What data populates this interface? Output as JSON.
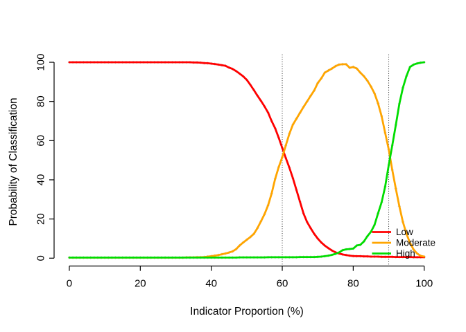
{
  "chart_data": {
    "type": "line",
    "title": "",
    "xlabel": "Indicator Proportion (%)",
    "ylabel": "Probability of Classification",
    "xlim": [
      0,
      100
    ],
    "ylim": [
      0,
      100
    ],
    "x_ticks": [
      "0",
      "20",
      "40",
      "60",
      "80",
      "100"
    ],
    "y_ticks": [
      "0",
      "20",
      "40",
      "60",
      "80",
      "100"
    ],
    "grid": "off",
    "legend_position": "bottom-right",
    "marker": {
      "shape": "diamond-point",
      "color": "#cbcbcb"
    },
    "vlines": [
      {
        "x": 60,
        "style": "dotted",
        "color": "#222222"
      },
      {
        "x": 90,
        "style": "dotted",
        "color": "#222222"
      }
    ],
    "x_step": 1,
    "series": [
      {
        "name": "Low",
        "color": "#ff0000",
        "values": [
          100,
          100,
          100,
          100,
          100,
          100,
          100,
          100,
          100,
          100,
          100,
          100,
          100,
          100,
          100,
          100,
          100,
          100,
          100,
          100,
          100,
          100,
          100,
          100,
          100,
          100,
          100,
          100,
          100,
          100,
          100,
          100,
          100,
          100,
          100,
          99.9,
          99.9,
          99.8,
          99.6,
          99.5,
          99.3,
          99.1,
          98.8,
          98.5,
          98.2,
          97.3,
          96.6,
          95.5,
          94.2,
          92.8,
          91.0,
          88.5,
          85.8,
          83.0,
          80.3,
          77.5,
          74.3,
          70.0,
          66.3,
          61.5,
          56.3,
          51.2,
          46.2,
          40.8,
          34.8,
          28.8,
          22.8,
          18.5,
          15.3,
          12.4,
          10.0,
          8.0,
          6.4,
          5.1,
          3.9,
          3.0,
          2.4,
          1.9,
          1.6,
          1.3,
          1.1,
          1.0,
          1.0,
          0.9,
          0.9,
          0.8,
          0.8,
          0.8,
          0.7,
          0.7,
          0.7,
          0.7,
          0.6,
          0.6,
          0.6,
          0.6,
          0.6,
          0.5,
          0.5,
          0.5,
          0.5
        ]
      },
      {
        "name": "Moderate",
        "color": "#ffa500",
        "values": [
          0.3,
          0.3,
          0.3,
          0.3,
          0.3,
          0.3,
          0.3,
          0.3,
          0.3,
          0.3,
          0.3,
          0.3,
          0.3,
          0.3,
          0.3,
          0.3,
          0.3,
          0.3,
          0.3,
          0.3,
          0.3,
          0.3,
          0.3,
          0.3,
          0.3,
          0.3,
          0.3,
          0.3,
          0.3,
          0.3,
          0.3,
          0.3,
          0.3,
          0.4,
          0.4,
          0.4,
          0.5,
          0.5,
          0.6,
          0.8,
          1.0,
          1.3,
          1.6,
          2.0,
          2.4,
          2.9,
          3.5,
          4.6,
          6.5,
          8.0,
          9.4,
          10.8,
          12.4,
          15.3,
          18.8,
          22.4,
          27.0,
          33.0,
          40.5,
          46.5,
          51.5,
          57.5,
          63.5,
          68.2,
          71.2,
          74.2,
          77.2,
          80.0,
          82.9,
          85.6,
          89.4,
          91.8,
          94.7,
          95.8,
          96.8,
          98.0,
          98.8,
          99.0,
          99.0,
          97.2,
          97.6,
          96.8,
          94.7,
          92.9,
          90.6,
          87.6,
          84.1,
          79.0,
          72.5,
          64.0,
          55.5,
          45.0,
          35.5,
          26.5,
          18.5,
          12.5,
          7.8,
          4.4,
          2.4,
          1.2,
          0.8
        ]
      },
      {
        "name": "High",
        "color": "#00dd00",
        "values": [
          0.3,
          0.3,
          0.3,
          0.3,
          0.3,
          0.3,
          0.3,
          0.3,
          0.3,
          0.3,
          0.3,
          0.3,
          0.3,
          0.3,
          0.3,
          0.3,
          0.3,
          0.3,
          0.3,
          0.3,
          0.3,
          0.3,
          0.3,
          0.3,
          0.3,
          0.3,
          0.3,
          0.3,
          0.3,
          0.3,
          0.3,
          0.3,
          0.3,
          0.3,
          0.3,
          0.3,
          0.3,
          0.3,
          0.3,
          0.3,
          0.3,
          0.3,
          0.3,
          0.3,
          0.3,
          0.3,
          0.3,
          0.3,
          0.4,
          0.4,
          0.4,
          0.4,
          0.4,
          0.4,
          0.4,
          0.4,
          0.5,
          0.5,
          0.5,
          0.5,
          0.5,
          0.5,
          0.5,
          0.5,
          0.5,
          0.6,
          0.6,
          0.6,
          0.6,
          0.6,
          0.7,
          0.8,
          1.0,
          1.3,
          1.7,
          2.2,
          2.9,
          4.1,
          4.5,
          4.7,
          4.9,
          6.5,
          6.8,
          8.5,
          11.2,
          13.5,
          17.0,
          22.9,
          28.5,
          36.5,
          47.5,
          57.6,
          68.0,
          78.8,
          87.0,
          92.9,
          97.6,
          98.8,
          99.4,
          99.8,
          100
        ]
      }
    ],
    "legend_labels": [
      "Low",
      "Moderate",
      "High"
    ]
  }
}
